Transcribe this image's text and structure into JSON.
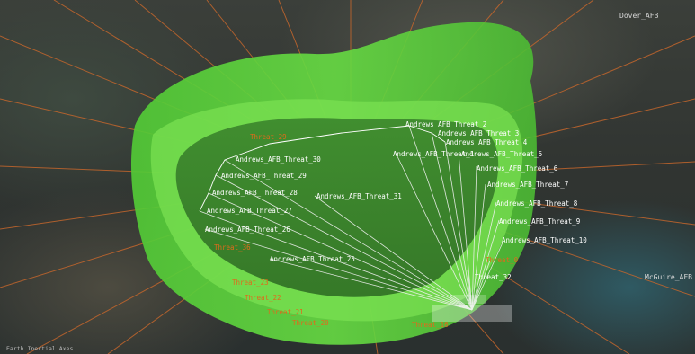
{
  "view": {
    "frame_label": "Earth Inertial Axes"
  },
  "sites": {
    "dover": "Dover_AFB",
    "mcguire": "McGuire_AFB"
  },
  "andrews_labels": [
    "Andrews_AFB_Threat_2",
    "Andrews_AFB_Threat_3",
    "Andrews_AFB_Threat_4",
    "Andrews_AFB_Threat_5",
    "Andrews_AFB_Threat_6",
    "Andrews_AFB_Threat_7",
    "Andrews_AFB_Threat_8",
    "Andrews_AFB_Threat_9",
    "Andrews_AFB_Threat_10",
    "Andrews_AFB_Threat_30",
    "Andrews_AFB_Threat_29",
    "Andrews_AFB_Threat_28",
    "Andrews_AFB_Threat_27",
    "Andrews_AFB_Threat_26",
    "Andrews_AFB_Threat_25",
    "Andrews_AFB_Threat_31",
    "Andrews_AFB_Threat_1"
  ],
  "threat_labels": [
    "Threat_32",
    "Threat_23",
    "Threat_22",
    "Threat_21",
    "Threat_20",
    "Threat_0",
    "Threat_36",
    "Threat_16",
    "Threat_29"
  ],
  "colors": {
    "shell_outer": "#5fd63a",
    "shell_inner": "#3f8f2a",
    "ray": "#c4662c",
    "label_white": "#ffffff",
    "label_orange": "#e06a1c"
  }
}
